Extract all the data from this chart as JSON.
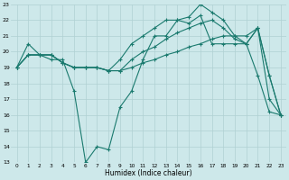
{
  "xlabel": "Humidex (Indice chaleur)",
  "xlim": [
    -0.5,
    23.5
  ],
  "ylim": [
    13,
    23
  ],
  "yticks": [
    13,
    14,
    15,
    16,
    17,
    18,
    19,
    20,
    21,
    22,
    23
  ],
  "xticks": [
    0,
    1,
    2,
    3,
    4,
    5,
    6,
    7,
    8,
    9,
    10,
    11,
    12,
    13,
    14,
    15,
    16,
    17,
    18,
    19,
    20,
    21,
    22,
    23
  ],
  "bg_color": "#cde8ea",
  "line_color": "#1a7a6e",
  "grid_color": "#b0d0d3",
  "series": [
    [
      19.0,
      20.5,
      19.8,
      19.5,
      19.5,
      17.5,
      13.0,
      14.0,
      13.8,
      16.5,
      17.5,
      19.5,
      21.0,
      21.0,
      22.0,
      21.8,
      22.3,
      20.5,
      20.5,
      20.5,
      20.5,
      18.5,
      16.2,
      16.0
    ],
    [
      19.0,
      19.8,
      19.8,
      19.8,
      19.3,
      19.0,
      19.0,
      19.0,
      18.8,
      18.8,
      19.0,
      19.3,
      19.5,
      19.8,
      20.0,
      20.3,
      20.5,
      20.8,
      21.0,
      21.0,
      21.0,
      21.5,
      17.0,
      16.0
    ],
    [
      19.0,
      19.8,
      19.8,
      19.8,
      19.3,
      19.0,
      19.0,
      19.0,
      18.8,
      18.8,
      19.5,
      20.0,
      20.3,
      20.8,
      21.2,
      21.5,
      21.8,
      22.0,
      21.5,
      20.8,
      20.5,
      21.5,
      18.5,
      16.0
    ],
    [
      19.0,
      19.8,
      19.8,
      19.8,
      19.3,
      19.0,
      19.0,
      19.0,
      18.8,
      19.5,
      20.5,
      21.0,
      21.5,
      22.0,
      22.0,
      22.2,
      23.0,
      22.5,
      22.0,
      21.0,
      20.5,
      21.5,
      18.5,
      16.0
    ]
  ]
}
